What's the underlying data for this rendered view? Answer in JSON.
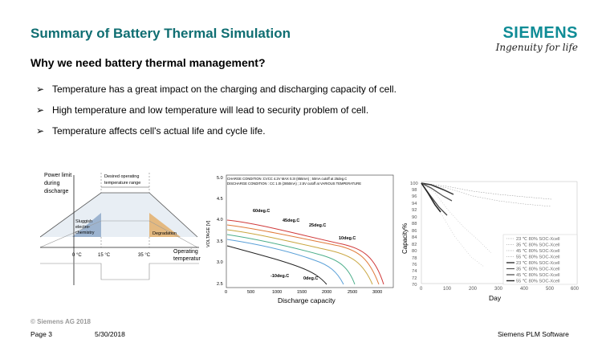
{
  "slide": {
    "title": "Summary of Battery Thermal Simulation",
    "subtitle": "Why we need battery thermal management?",
    "bullets": [
      "Temperature has a great impact on the charging and discharging capacity of cell.",
      "High temperature and low temperature will lead to security problem of cell.",
      "Temperature affects cell's actual life and cycle life."
    ]
  },
  "logo": {
    "word": "SIEMENS",
    "tagline": "Ingenuity for life"
  },
  "fig1": {
    "ylabel_lines": [
      "Power limit",
      "during",
      "discharge"
    ],
    "range_label_lines": [
      "Desired operating",
      "temperature range"
    ],
    "sluggish_lines": [
      "Sluggish",
      "electro-",
      "chemistry"
    ],
    "degradation": "Degradation",
    "ticks": [
      "0 °C",
      "15 °C",
      "35 °C"
    ],
    "xlabel_lines": [
      "Operating",
      "temperature"
    ]
  },
  "fig2": {
    "condition_lines": [
      "CHARGE CONDITION :CVCC 4.2V MAX 0.3I (855mA) ; 50mA cutoff at 25deg.C",
      "DISCHARGE CONDITION : CC 1.0I (2850mA) ; 2.5V cutoff at VARIOUS TEMPERATURE"
    ],
    "ylabel": "VOLTAGE [V]",
    "xlabel": "Discharge capacity",
    "y_ticks": [
      "2.5",
      "3.0",
      "3.5",
      "4.0",
      "4.5",
      "5.0"
    ],
    "x_ticks": [
      "0",
      "500",
      "1000",
      "1500",
      "2000",
      "2500",
      "3000"
    ],
    "curve_labels": [
      "60deg.C",
      "45deg.C",
      "25deg.C",
      "10deg.C",
      "-10deg.C",
      "0deg.C"
    ],
    "colors": [
      "#d03a3a",
      "#e07a3a",
      "#c9a640",
      "#4cae8a",
      "#5aa0d8",
      "#222222"
    ]
  },
  "fig3": {
    "ylabel": "Capacity%",
    "xlabel": "Day",
    "y_ticks": [
      "100",
      "98",
      "96",
      "94",
      "92",
      "90",
      "88",
      "86",
      "84",
      "82",
      "80",
      "78",
      "76",
      "74",
      "72",
      "70"
    ],
    "x_ticks": [
      "0",
      "100",
      "200",
      "300",
      "400",
      "500",
      "600"
    ],
    "legend": [
      "23 ℃ 80% SOC-Xcell",
      "35 ℃ 80% SOC-Xcell",
      "45 ℃ 80% SOC-Xcell",
      "55 ℃ 80% SOC-Xcell",
      "23 ℃ 80% SOC-Xcell",
      "35 ℃ 80% SOC-Xcell",
      "45 ℃ 80% SOC-Xcell",
      "55 ℃ 80% SOC-Xcell"
    ]
  },
  "footer": {
    "copyright": "© Siemens AG 2018",
    "page": "Page 3",
    "date": "5/30/2018",
    "company": "Siemens PLM Software"
  }
}
